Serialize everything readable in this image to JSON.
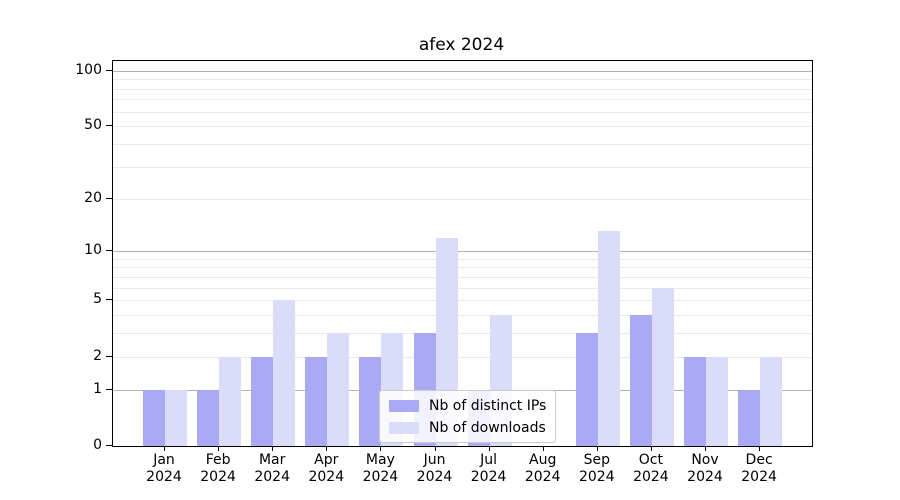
{
  "chart_data": {
    "type": "bar",
    "title": "afex 2024",
    "categories": [
      {
        "month": "Jan",
        "year": "2024"
      },
      {
        "month": "Feb",
        "year": "2024"
      },
      {
        "month": "Mar",
        "year": "2024"
      },
      {
        "month": "Apr",
        "year": "2024"
      },
      {
        "month": "May",
        "year": "2024"
      },
      {
        "month": "Jun",
        "year": "2024"
      },
      {
        "month": "Jul",
        "year": "2024"
      },
      {
        "month": "Aug",
        "year": "2024"
      },
      {
        "month": "Sep",
        "year": "2024"
      },
      {
        "month": "Oct",
        "year": "2024"
      },
      {
        "month": "Nov",
        "year": "2024"
      },
      {
        "month": "Dec",
        "year": "2024"
      }
    ],
    "series": [
      {
        "name": "Nb of distinct IPs",
        "color": "#a9aaf3",
        "values": [
          1,
          1,
          2,
          2,
          2,
          3,
          1,
          0,
          3,
          4,
          2,
          1
        ]
      },
      {
        "name": "Nb of downloads",
        "color": "#dbdcf9",
        "values": [
          1,
          2,
          5,
          3,
          3,
          12,
          4,
          0,
          13,
          6,
          2,
          2
        ]
      }
    ],
    "y_axis": {
      "scale": "log1p",
      "max": 113,
      "tick_values": [
        0,
        1,
        2,
        5,
        10,
        20,
        50,
        100
      ],
      "tick_labels": [
        "0",
        "1",
        "2",
        "5",
        "10",
        "20",
        "50",
        "100"
      ],
      "major_gridlines": [
        1,
        10,
        100
      ],
      "minor_gridlines": [
        2,
        3,
        4,
        5,
        6,
        7,
        8,
        9,
        20,
        30,
        40,
        50,
        60,
        70,
        80,
        90
      ]
    },
    "legend": {
      "position": "lower center"
    },
    "grid": true,
    "colors": {
      "major_grid": "#b2b2b2",
      "minor_grid": "#e9e9e9",
      "spine": "#000000",
      "background": "#ffffff",
      "text": "#000000"
    }
  }
}
